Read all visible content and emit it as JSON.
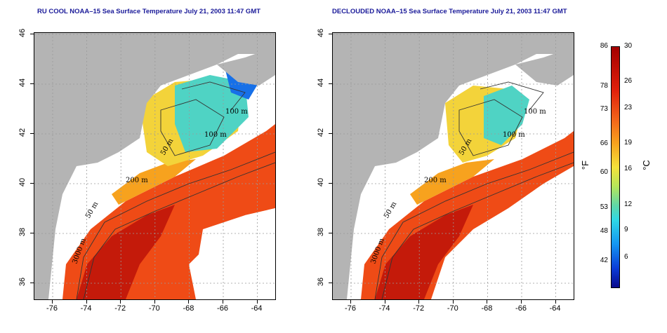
{
  "panels": [
    {
      "title": "RU COOL NOAA–15 Sea Surface Temperature July 21, 2003 11:47 GMT",
      "variant": "ru_cool"
    },
    {
      "title": "DECLOUDED NOAA–15 Sea Surface Temperature July 21, 2003 11:47 GMT",
      "variant": "declouded"
    }
  ],
  "axes": {
    "lat_ticks": [
      "46",
      "44",
      "42",
      "40",
      "38",
      "36"
    ],
    "lon_ticks": [
      "-76",
      "-74",
      "-72",
      "-70",
      "-68",
      "-66",
      "-64"
    ]
  },
  "contours": {
    "labels": [
      "100 m",
      "100 m",
      "50 m",
      "200 m",
      "50 m",
      "3000 m"
    ]
  },
  "colorbar": {
    "fahrenheit_ticks": [
      "86",
      "78",
      "73",
      "66",
      "60",
      "53",
      "48",
      "42"
    ],
    "celsius_ticks": [
      "30",
      "26",
      "23",
      "19",
      "16",
      "12",
      "9",
      "6"
    ],
    "f_unit": "°F",
    "c_unit": "°C",
    "colors": [
      "#a30000",
      "#e0200b",
      "#f2631a",
      "#f7a21e",
      "#f5e23a",
      "#b6e65a",
      "#5fd7a8",
      "#2fd8e6",
      "#1496f2",
      "#0b3cd8",
      "#0a0a8c"
    ]
  },
  "map_colors": {
    "land": "#b4b4b4",
    "cloud": "#ffffff",
    "grid": "#9a9a9a"
  }
}
